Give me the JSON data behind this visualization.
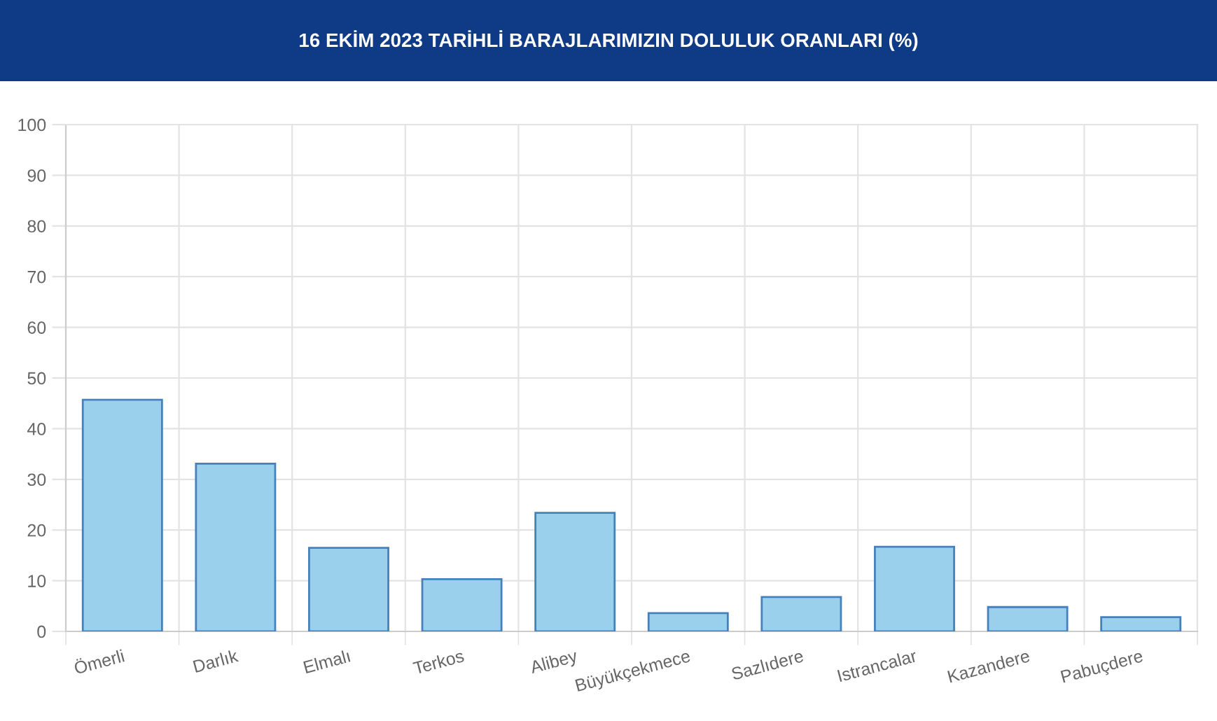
{
  "chart_data": {
    "type": "bar",
    "title": "16 EKİM 2023 TARİHLİ BARAJLARIMIZIN DOLULUK ORANLARI (%)",
    "categories": [
      "Ömerli",
      "Darlık",
      "Elmalı",
      "Terkos",
      "Alibey",
      "Büyükçekmece",
      "Sazlıdere",
      "Istrancalar",
      "Kazandere",
      "Pabuçdere"
    ],
    "values": [
      45.7,
      33.1,
      16.5,
      10.3,
      23.4,
      3.6,
      6.8,
      16.7,
      4.8,
      2.8
    ],
    "color": "#9bd0ec",
    "ylim": [
      0,
      100
    ],
    "yticks": [
      0,
      10,
      20,
      30,
      40,
      50,
      60,
      70,
      80,
      90,
      100
    ],
    "grid": true
  }
}
